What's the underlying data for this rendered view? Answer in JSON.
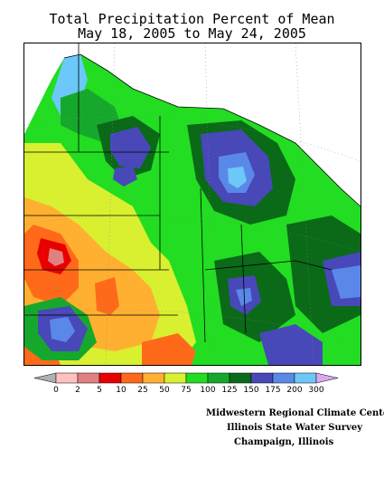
{
  "title": {
    "line1": "Total Precipitation Percent of Mean",
    "line2": "May 18, 2005 to May 24, 2005"
  },
  "legend": {
    "colors": [
      "#ffc0c0",
      "#e08080",
      "#e80000",
      "#ff6a1a",
      "#ffb030",
      "#d8f030",
      "#22dd22",
      "#16a82c",
      "#0a6a18",
      "#4848b8",
      "#5a88e8",
      "#6cc8f8"
    ],
    "labels": [
      "0",
      "2",
      "5",
      "10",
      "25",
      "50",
      "75",
      "100",
      "125",
      "150",
      "175",
      "200",
      "300"
    ]
  },
  "credits": {
    "line1": "Midwestern Regional Climate Center",
    "line2": "Illinois State Water Survey",
    "line3": "Champaign, Illinois"
  }
}
